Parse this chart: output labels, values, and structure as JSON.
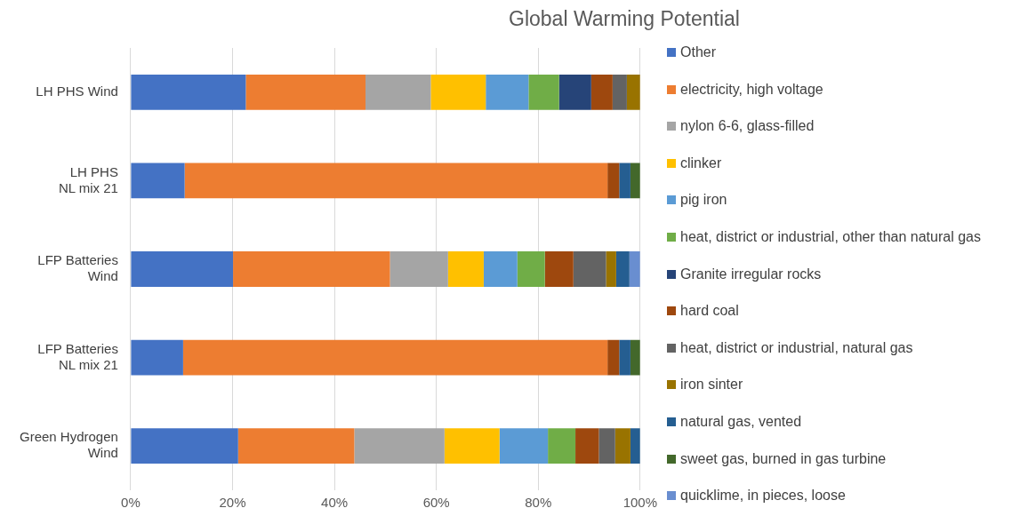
{
  "chart_data": {
    "type": "bar",
    "orientation": "horizontal",
    "stacked": true,
    "title": "Global Warming Potential",
    "categories": [
      "LH PHS Wind",
      "LH PHS\nNL mix 21",
      "LFP Batteries\nWind",
      "LFP Batteries\nNL mix 21",
      "Green Hydrogen\nWind"
    ],
    "xlim": [
      0,
      100
    ],
    "xticks": [
      {
        "value": 0,
        "label": "0%"
      },
      {
        "value": 20,
        "label": "20%"
      },
      {
        "value": 40,
        "label": "40%"
      },
      {
        "value": 60,
        "label": "60%"
      },
      {
        "value": 80,
        "label": "80%"
      },
      {
        "value": 100,
        "label": "100%"
      }
    ],
    "grid": "x",
    "legend": "right",
    "series": [
      {
        "name": "Other",
        "color": "#4472c4",
        "values": [
          22.6,
          10.6,
          20.1,
          10.3,
          21.1
        ]
      },
      {
        "name": "electricity, high voltage",
        "color": "#ed7d31",
        "values": [
          23.5,
          83.0,
          30.8,
          83.3,
          22.8
        ]
      },
      {
        "name": "nylon 6-6, glass-filled",
        "color": "#a5a5a5",
        "values": [
          12.8,
          null,
          11.4,
          null,
          17.7
        ]
      },
      {
        "name": "clinker",
        "color": "#ffc000",
        "values": [
          10.8,
          null,
          7.0,
          null,
          10.8
        ]
      },
      {
        "name": "pig iron",
        "color": "#5b9bd5",
        "values": [
          8.4,
          null,
          6.6,
          null,
          9.5
        ]
      },
      {
        "name": "heat, district or industrial, other than natural gas",
        "color": "#70ad47",
        "values": [
          6.0,
          null,
          5.4,
          null,
          5.4
        ]
      },
      {
        "name": "Granite irregular rocks",
        "color": "#264478",
        "values": [
          6.3,
          null,
          null,
          null,
          null
        ]
      },
      {
        "name": "hard coal",
        "color": "#9e480e",
        "values": [
          4.2,
          2.3,
          5.6,
          2.3,
          4.6
        ]
      },
      {
        "name": "heat, district or industrial, natural gas",
        "color": "#636363",
        "values": [
          2.8,
          null,
          6.4,
          null,
          3.2
        ]
      },
      {
        "name": "iron sinter",
        "color": "#997300",
        "values": [
          2.6,
          null,
          2.0,
          null,
          3.0
        ]
      },
      {
        "name": "natural gas, vented",
        "color": "#255e91",
        "values": [
          null,
          2.2,
          2.6,
          2.2,
          1.9
        ]
      },
      {
        "name": "sweet gas, burned in gas turbine",
        "color": "#43682b",
        "values": [
          null,
          1.9,
          null,
          1.9,
          null
        ]
      },
      {
        "name": "quicklime, in pieces, loose",
        "color": "#698ed0",
        "values": [
          null,
          null,
          2.1,
          null,
          null
        ]
      }
    ]
  }
}
